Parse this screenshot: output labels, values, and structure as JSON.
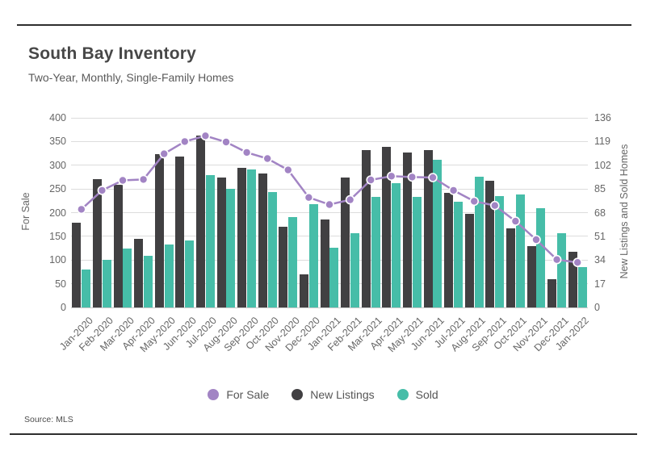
{
  "card": {
    "title": "South Bay Inventory",
    "subtitle": "Two-Year, Monthly, Single-Family Homes",
    "source": "Source:  MLS"
  },
  "legend": [
    {
      "label": "For Sale",
      "color": "#a284c4"
    },
    {
      "label": "New Listings",
      "color": "#414042"
    },
    {
      "label": "Sold",
      "color": "#46bda8"
    }
  ],
  "colors": {
    "grid": "#dcdcdc",
    "rule": "#2e2e2e",
    "line": "#a284c4",
    "bar_new_listings": "#414042",
    "bar_sold": "#46bda8"
  },
  "chart_data": {
    "type": "bar",
    "note": "combo chart: two bar series on right axis, one line series on left axis",
    "title": "South Bay Inventory",
    "subtitle": "Two-Year, Monthly, Single-Family Homes",
    "categories": [
      "Jan-2020",
      "Feb-2020",
      "Mar-2020",
      "Apr-2020",
      "May-2020",
      "Jun-2020",
      "Jul-2020",
      "Aug-2020",
      "Sep-2020",
      "Oct-2020",
      "Nov-2020",
      "Dec-2020",
      "Jan-2021",
      "Feb-2021",
      "Mar-2021",
      "Apr-2021",
      "May-2021",
      "Jun-2021",
      "Jul-2021",
      "Aug-2021",
      "Sep-2021",
      "Oct-2021",
      "Nov-2021",
      "Dec-2021",
      "Jan-2022"
    ],
    "series": [
      {
        "name": "For Sale",
        "type": "line",
        "axis": "left",
        "color": "#a284c4",
        "values": [
          207,
          247,
          268,
          270,
          324,
          350,
          362,
          349,
          327,
          314,
          290,
          232,
          217,
          227,
          269,
          277,
          275,
          274,
          247,
          224,
          215,
          182,
          143,
          101,
          95
        ]
      },
      {
        "name": "New Listings",
        "type": "bar",
        "axis": "right",
        "color": "#414042",
        "values": [
          61,
          92,
          88,
          49,
          110,
          108,
          123,
          93,
          100,
          96,
          58,
          24,
          63,
          93,
          113,
          115,
          111,
          113,
          82,
          67,
          91,
          57,
          44,
          20,
          40
        ]
      },
      {
        "name": "Sold",
        "type": "bar",
        "axis": "right",
        "color": "#46bda8",
        "values": [
          27,
          34,
          42,
          37,
          45,
          48,
          95,
          85,
          99,
          83,
          65,
          74,
          43,
          53,
          79,
          89,
          79,
          106,
          76,
          94,
          80,
          81,
          71,
          53,
          29
        ]
      }
    ],
    "left_axis": {
      "label": "For Sale",
      "range": [
        0,
        400
      ],
      "ticks": [
        0,
        50,
        100,
        150,
        200,
        250,
        300,
        350,
        400
      ]
    },
    "right_axis": {
      "label": "New Listings and Sold Homes",
      "range": [
        0,
        136
      ],
      "ticks": [
        0,
        17,
        34,
        51,
        68,
        85,
        102,
        119,
        136
      ]
    },
    "grid": true,
    "legend_position": "bottom"
  }
}
